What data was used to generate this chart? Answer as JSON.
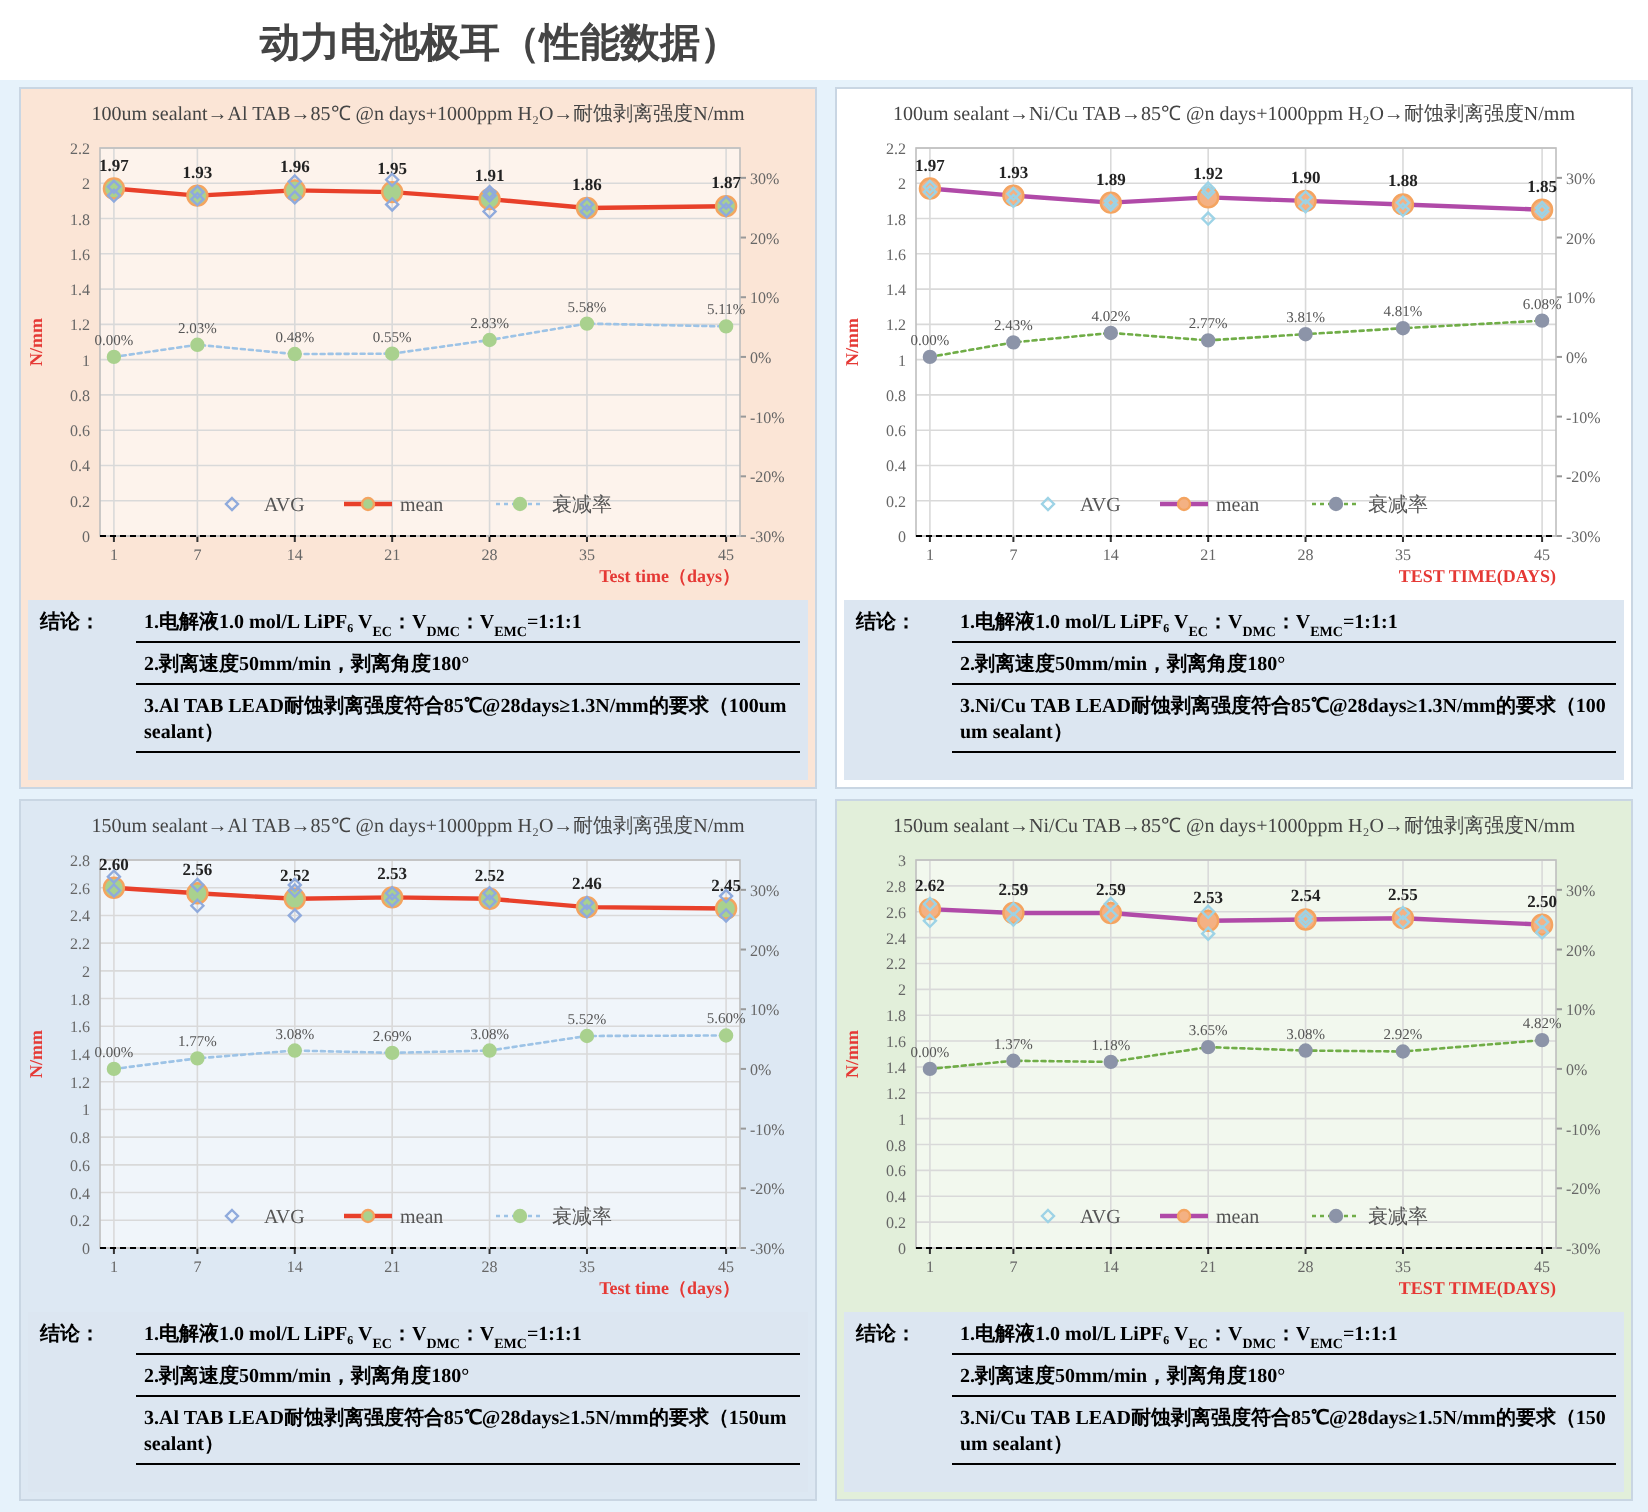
{
  "chart_data": [
    {
      "type": "other",
      "title": "动力电池极耳（性能数据）"
    },
    {
      "type": "line",
      "title": "100um sealant→Al TAB→85℃ @n days+1000ppm H₂O→耐蚀剥离强度N/mm",
      "xlabel": "Test time（days）",
      "ylabel": "N/mm",
      "xlim": [
        0,
        46
      ],
      "xticks": [
        1,
        7,
        14,
        21,
        28,
        35,
        45
      ],
      "ylim": [
        0,
        2.2
      ],
      "yticks": [
        0,
        0.2,
        0.4,
        0.6,
        0.8,
        1,
        1.2,
        1.4,
        1.6,
        1.8,
        2,
        2.2
      ],
      "y2lim": [
        -30,
        35
      ],
      "y2ticks": [
        {
          "value": 30,
          "label": "30%"
        },
        {
          "value": 20,
          "label": "20%"
        },
        {
          "value": 10,
          "label": "10%"
        },
        {
          "value": 0,
          "label": "0%"
        },
        {
          "value": -10,
          "label": "-10%"
        },
        {
          "value": -20,
          "label": "-20%"
        },
        {
          "value": -30,
          "label": "-30%"
        }
      ],
      "grid": true,
      "legend": "bottom",
      "x": [
        1,
        7,
        14,
        21,
        28,
        35,
        45
      ],
      "series": [
        {
          "name": "AVG",
          "type": "scatter",
          "marker": "diamond",
          "color": "#8faadc",
          "x": [
            1,
            1,
            7,
            7,
            14,
            14,
            21,
            21,
            28,
            28,
            28,
            35,
            35,
            45,
            45
          ],
          "values": [
            1.93,
            1.98,
            1.91,
            1.95,
            1.92,
            2.01,
            1.88,
            2.02,
            1.84,
            1.93,
            1.95,
            1.84,
            1.88,
            1.85,
            1.89
          ]
        },
        {
          "name": "mean",
          "type": "line",
          "marker": "circle",
          "line_style": "solid",
          "color": "#e8402a",
          "colors": [
            "#a9d18e",
            "#a9d18e",
            "#a9d18e",
            "#a9d18e",
            "#a9d18e",
            "#a9d18e",
            "#a9d18e"
          ],
          "values": [
            1.97,
            1.93,
            1.96,
            1.95,
            1.91,
            1.86,
            1.87
          ],
          "value_labels": [
            "1.97",
            "1.93",
            "1.96",
            "1.95",
            "1.91",
            "1.86",
            "1.87"
          ]
        },
        {
          "name": "衰减率",
          "type": "line",
          "marker": "circle",
          "line_style": "dotted",
          "axis": "y2",
          "color": "#9dc3e6",
          "colors": [
            "#a9d18e",
            "#a9d18e",
            "#a9d18e",
            "#a9d18e",
            "#a9d18e",
            "#a9d18e",
            "#a9d18e"
          ],
          "values": [
            0,
            2.03,
            0.48,
            0.55,
            2.83,
            5.58,
            5.11
          ],
          "value_labels": [
            "0.00%",
            "2.03%",
            "0.48%",
            "0.55%",
            "2.83%",
            "5.58%",
            "5.11%"
          ]
        }
      ],
      "annotations": [
        "结论：",
        "1.电解液1.0 mol/L LiPF₆ V$_{EC}$：V$_{DMC}$：V$_{EMC}$=1:1:1",
        "2.剥离速度50mm/min，剥离角度180°",
        "3.Al TAB LEAD耐蚀剥离强度符合85℃@28days≥1.3N/mm的要求（100um sealant）"
      ]
    },
    {
      "type": "line",
      "title": "100um sealant→Ni/Cu TAB→85℃ @n days+1000ppm H₂O→耐蚀剥离强度N/mm",
      "xlabel": "TEST TIME(DAYS)",
      "ylabel": "N/mm",
      "xlim": [
        0,
        46
      ],
      "xticks": [
        1,
        7,
        14,
        21,
        28,
        35,
        45
      ],
      "ylim": [
        0,
        2.2
      ],
      "yticks": [
        0,
        0.2,
        0.4,
        0.6,
        0.8,
        1,
        1.2,
        1.4,
        1.6,
        1.8,
        2,
        2.2
      ],
      "y2lim": [
        -30,
        35
      ],
      "y2ticks": [
        {
          "value": 30,
          "label": "30%"
        },
        {
          "value": 20,
          "label": "20%"
        },
        {
          "value": 10,
          "label": "10%"
        },
        {
          "value": 0,
          "label": "0%"
        },
        {
          "value": -10,
          "label": "-10%"
        },
        {
          "value": -20,
          "label": "-20%"
        },
        {
          "value": -30,
          "label": "-30%"
        }
      ],
      "grid": true,
      "legend": "bottom",
      "x": [
        1,
        7,
        14,
        21,
        28,
        35,
        45
      ],
      "series": [
        {
          "name": "AVG",
          "type": "scatter",
          "marker": "diamond",
          "color": "#9dd3e6",
          "x": [
            1,
            1,
            7,
            7,
            14,
            14,
            21,
            21,
            21,
            28,
            28,
            35,
            35,
            45,
            45
          ],
          "values": [
            1.95,
            1.98,
            1.9,
            1.94,
            1.88,
            1.9,
            1.8,
            1.95,
            1.97,
            1.87,
            1.92,
            1.85,
            1.89,
            1.84,
            1.86
          ]
        },
        {
          "name": "mean",
          "type": "line",
          "marker": "circle",
          "line_style": "solid",
          "color": "#b04aa8",
          "colors": [
            "#f4b183",
            "#f4b183",
            "#f4b183",
            "#f4b183",
            "#f4b183",
            "#f4b183",
            "#f4b183"
          ],
          "values": [
            1.97,
            1.93,
            1.89,
            1.92,
            1.9,
            1.88,
            1.85
          ],
          "value_labels": [
            "1.97",
            "1.93",
            "1.89",
            "1.92",
            "1.90",
            "1.88",
            "1.85"
          ]
        },
        {
          "name": "衰减率",
          "type": "line",
          "marker": "circle",
          "line_style": "dotted",
          "axis": "y2",
          "color": "#70ad47",
          "colors": [
            "#8c94a8",
            "#8c94a8",
            "#8c94a8",
            "#8c94a8",
            "#8c94a8",
            "#8c94a8",
            "#8c94a8"
          ],
          "values": [
            0,
            2.43,
            4.02,
            2.77,
            3.81,
            4.81,
            6.08
          ],
          "value_labels": [
            "0.00%",
            "2.43%",
            "4.02%",
            "2.77%",
            "3.81%",
            "4.81%",
            "6.08%"
          ]
        }
      ],
      "annotations": [
        "结论：",
        "1.电解液1.0 mol/L LiPF₆ V$_{EC}$：V$_{DMC}$：V$_{EMC}$=1:1:1",
        "2.剥离速度50mm/min，剥离角度180°",
        "3.Ni/Cu TAB LEAD耐蚀剥离强度符合85℃@28days≥1.3N/mm的要求（100um sealant）"
      ]
    },
    {
      "type": "line",
      "title": "150um sealant→Al TAB→85℃ @n days+1000ppm H₂O→耐蚀剥离强度N/mm",
      "xlabel": "Test time（days）",
      "ylabel": "N/mm",
      "xlim": [
        0,
        46
      ],
      "xticks": [
        1,
        7,
        14,
        21,
        28,
        35,
        45
      ],
      "ylim": [
        0,
        2.8
      ],
      "yticks": [
        0,
        0.2,
        0.4,
        0.6,
        0.8,
        1,
        1.2,
        1.4,
        1.6,
        1.8,
        2,
        2.2,
        2.4,
        2.6,
        2.8
      ],
      "y2lim": [
        -30,
        35
      ],
      "y2ticks": [
        {
          "value": 30,
          "label": "30%"
        },
        {
          "value": 20,
          "label": "20%"
        },
        {
          "value": 10,
          "label": "10%"
        },
        {
          "value": 0,
          "label": "0%"
        },
        {
          "value": -10,
          "label": "-10%"
        },
        {
          "value": -20,
          "label": "-20%"
        },
        {
          "value": -30,
          "label": "-30%"
        }
      ],
      "grid": true,
      "legend": "bottom",
      "x": [
        1,
        7,
        14,
        21,
        28,
        35,
        45
      ],
      "series": [
        {
          "name": "AVG",
          "type": "scatter",
          "marker": "diamond",
          "color": "#8faadc",
          "x": [
            1,
            1,
            7,
            7,
            14,
            14,
            14,
            21,
            21,
            28,
            28,
            35,
            35,
            45,
            45
          ],
          "values": [
            2.58,
            2.68,
            2.47,
            2.62,
            2.4,
            2.58,
            2.62,
            2.51,
            2.56,
            2.5,
            2.56,
            2.43,
            2.49,
            2.4,
            2.54
          ]
        },
        {
          "name": "mean",
          "type": "line",
          "marker": "circle",
          "line_style": "solid",
          "color": "#e8402a",
          "colors": [
            "#a9d18e",
            "#a9d18e",
            "#a9d18e",
            "#a9d18e",
            "#a9d18e",
            "#a9d18e",
            "#a9d18e"
          ],
          "values": [
            2.6,
            2.56,
            2.52,
            2.53,
            2.52,
            2.46,
            2.45
          ],
          "value_labels": [
            "2.60",
            "2.56",
            "2.52",
            "2.53",
            "2.52",
            "2.46",
            "2.45"
          ]
        },
        {
          "name": "衰减率",
          "type": "line",
          "marker": "circle",
          "line_style": "dotted",
          "axis": "y2",
          "color": "#9dc3e6",
          "colors": [
            "#a9d18e",
            "#a9d18e",
            "#a9d18e",
            "#a9d18e",
            "#a9d18e",
            "#a9d18e",
            "#a9d18e"
          ],
          "values": [
            0,
            1.77,
            3.08,
            2.69,
            3.08,
            5.52,
            5.6
          ],
          "value_labels": [
            "0.00%",
            "1.77%",
            "3.08%",
            "2.69%",
            "3.08%",
            "5.52%",
            "5.60%"
          ]
        }
      ],
      "annotations": [
        "结论：",
        "1.电解液1.0 mol/L LiPF₆ V$_{EC}$：V$_{DMC}$：V$_{EMC}$=1:1:1",
        "2.剥离速度50mm/min，剥离角度180°",
        "3.Al TAB LEAD耐蚀剥离强度符合85℃@28days≥1.5N/mm的要求（150um sealant）"
      ]
    },
    {
      "type": "line",
      "title": "150um sealant→Ni/Cu TAB→85℃ @n days+1000ppm H₂O→耐蚀剥离强度N/mm",
      "xlabel": "TEST TIME(DAYS)",
      "ylabel": "N/mm",
      "xlim": [
        0,
        46
      ],
      "xticks": [
        1,
        7,
        14,
        21,
        28,
        35,
        45
      ],
      "ylim": [
        0,
        3
      ],
      "yticks": [
        0,
        0.2,
        0.4,
        0.6,
        0.8,
        1,
        1.2,
        1.4,
        1.6,
        1.8,
        2,
        2.2,
        2.4,
        2.6,
        2.8,
        3
      ],
      "y2lim": [
        -30,
        35
      ],
      "y2ticks": [
        {
          "value": 30,
          "label": "30%"
        },
        {
          "value": 20,
          "label": "20%"
        },
        {
          "value": 10,
          "label": "10%"
        },
        {
          "value": 0,
          "label": "0%"
        },
        {
          "value": -10,
          "label": "-10%"
        },
        {
          "value": -20,
          "label": "-20%"
        },
        {
          "value": -30,
          "label": "-30%"
        }
      ],
      "grid": true,
      "legend": "bottom",
      "x": [
        1,
        7,
        14,
        21,
        28,
        35,
        45
      ],
      "series": [
        {
          "name": "AVG",
          "type": "scatter",
          "marker": "diamond",
          "color": "#9dd3e6",
          "x": [
            1,
            1,
            7,
            7,
            14,
            14,
            21,
            21,
            28,
            28,
            35,
            35,
            45,
            45
          ],
          "values": [
            2.53,
            2.66,
            2.54,
            2.62,
            2.57,
            2.66,
            2.43,
            2.6,
            2.53,
            2.56,
            2.52,
            2.59,
            2.44,
            2.52
          ]
        },
        {
          "name": "mean",
          "type": "line",
          "marker": "circle",
          "line_style": "solid",
          "color": "#b04aa8",
          "colors": [
            "#f4b183",
            "#f4b183",
            "#f4b183",
            "#f4b183",
            "#f4b183",
            "#f4b183",
            "#f4b183"
          ],
          "values": [
            2.62,
            2.59,
            2.59,
            2.53,
            2.54,
            2.55,
            2.5
          ],
          "value_labels": [
            "2.62",
            "2.59",
            "2.59",
            "2.53",
            "2.54",
            "2.55",
            "2.50"
          ]
        },
        {
          "name": "衰减率",
          "type": "line",
          "marker": "circle",
          "line_style": "dotted",
          "axis": "y2",
          "color": "#70ad47",
          "colors": [
            "#8c94a8",
            "#8c94a8",
            "#8c94a8",
            "#8c94a8",
            "#8c94a8",
            "#8c94a8",
            "#8c94a8"
          ],
          "values": [
            0,
            1.37,
            1.18,
            3.65,
            3.08,
            2.92,
            4.82
          ],
          "value_labels": [
            "0.00%",
            "1.37%",
            "1.18%",
            "3.65%",
            "3.08%",
            "2.92%",
            "4.82%"
          ]
        }
      ],
      "annotations": [
        "结论：",
        "1.电解液1.0 mol/L LiPF₆ V$_{EC}$：V$_{DMC}$：V$_{EMC}$=1:1:1",
        "2.剥离速度50mm/min，剥离角度180°",
        "3.Ni/Cu TAB LEAD耐蚀剥离强度符合85℃@28days≥1.5N/mm的要求（150um sealant）"
      ]
    }
  ]
}
